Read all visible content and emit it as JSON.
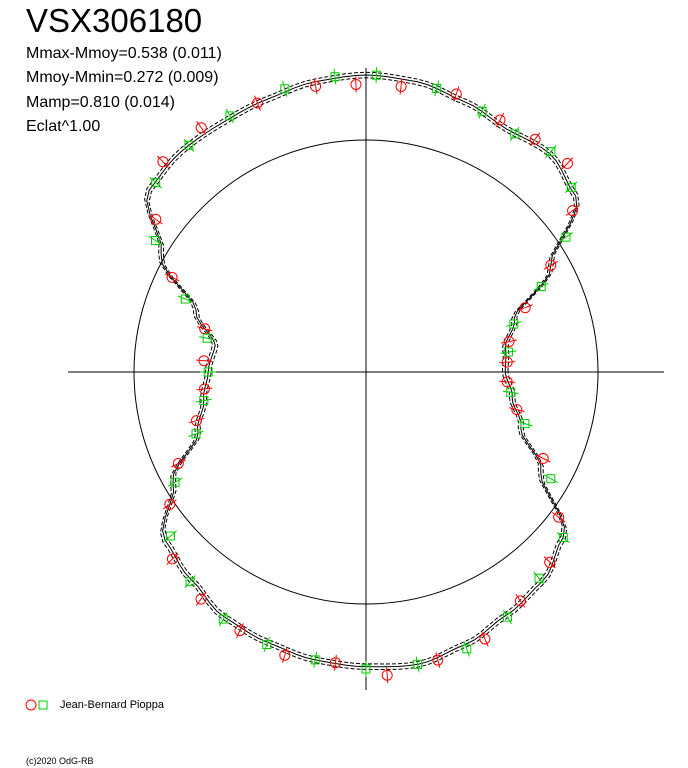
{
  "header": {
    "title": "VSX306180",
    "stats": [
      "Mmax-Mmoy=0.538 (0.011)",
      "Mmoy-Mmin=0.272 (0.009)",
      "Mamp=0.810 (0.014)",
      "Eclat^1.00"
    ]
  },
  "legend": {
    "observer": "Jean-Bernard Pioppa",
    "circle_color": "#ff0000",
    "square_color": "#00cc00"
  },
  "footer": {
    "copyright": "(c)2020 OdG-RB"
  },
  "chart_data": {
    "type": "polar",
    "title": "VSX306180",
    "statistics": {
      "mmax_minus_mmoy": 0.538,
      "mmax_minus_mmoy_err": 0.011,
      "mmoy_minus_mmin": 0.272,
      "mmoy_minus_mmin_err": 0.009,
      "mamp": 0.81,
      "mamp_err": 0.014,
      "eclat_exponent": 1.0
    },
    "reference_circle_radius": 1.0,
    "model_curve_radius_by_angle_deg": [
      [
        0,
        0.6
      ],
      [
        10,
        0.61
      ],
      [
        20,
        0.68
      ],
      [
        30,
        0.92
      ],
      [
        40,
        1.18
      ],
      [
        50,
        1.23
      ],
      [
        60,
        1.21
      ],
      [
        70,
        1.24
      ],
      [
        80,
        1.27
      ],
      [
        90,
        1.28
      ],
      [
        100,
        1.27
      ],
      [
        110,
        1.25
      ],
      [
        120,
        1.24
      ],
      [
        130,
        1.24
      ],
      [
        140,
        1.22
      ],
      [
        150,
        1.02
      ],
      [
        160,
        0.78
      ],
      [
        170,
        0.66
      ],
      [
        180,
        0.68
      ],
      [
        190,
        0.71
      ],
      [
        200,
        0.77
      ],
      [
        210,
        0.96
      ],
      [
        220,
        1.13
      ],
      [
        230,
        1.17
      ],
      [
        240,
        1.22
      ],
      [
        250,
        1.24
      ],
      [
        260,
        1.26
      ],
      [
        270,
        1.27
      ],
      [
        280,
        1.28
      ],
      [
        290,
        1.25
      ],
      [
        300,
        1.21
      ],
      [
        310,
        1.18
      ],
      [
        320,
        1.11
      ],
      [
        330,
        0.87
      ],
      [
        340,
        0.71
      ],
      [
        350,
        0.64
      ],
      [
        360,
        0.6
      ]
    ],
    "series": [
      {
        "name": "Jean-Bernard Pioppa",
        "marker": "circle",
        "color": "#ff0000",
        "points": [
          [
            4,
            0.61
          ],
          [
            12,
            0.63
          ],
          [
            22,
            0.74
          ],
          [
            30,
            0.92
          ],
          [
            38,
            1.13
          ],
          [
            46,
            1.25
          ],
          [
            54,
            1.24
          ],
          [
            62,
            1.23
          ],
          [
            72,
            1.26
          ],
          [
            83,
            1.24
          ],
          [
            92,
            1.24
          ],
          [
            100,
            1.25
          ],
          [
            112,
            1.25
          ],
          [
            124,
            1.27
          ],
          [
            134,
            1.26
          ],
          [
            144,
            1.12
          ],
          [
            154,
            0.93
          ],
          [
            165,
            0.72
          ],
          [
            176,
            0.7
          ],
          [
            186,
            0.7
          ],
          [
            196,
            0.76
          ],
          [
            206,
            0.9
          ],
          [
            214,
            1.02
          ],
          [
            224,
            1.16
          ],
          [
            234,
            1.21
          ],
          [
            244,
            1.24
          ],
          [
            254,
            1.27
          ],
          [
            264,
            1.26
          ],
          [
            274,
            1.31
          ],
          [
            284,
            1.28
          ],
          [
            294,
            1.26
          ],
          [
            304,
            1.19
          ],
          [
            314,
            1.14
          ],
          [
            323,
            1.04
          ],
          [
            334,
            0.85
          ],
          [
            346,
            0.67
          ],
          [
            356,
            0.61
          ]
        ]
      },
      {
        "name": "Jean-Bernard Pioppa",
        "marker": "square",
        "color": "#00cc00",
        "points": [
          [
            8,
            0.62
          ],
          [
            18,
            0.67
          ],
          [
            26,
            0.84
          ],
          [
            34,
            1.04
          ],
          [
            42,
            1.19
          ],
          [
            50,
            1.24
          ],
          [
            58,
            1.21
          ],
          [
            66,
            1.23
          ],
          [
            76,
            1.26
          ],
          [
            88,
            1.28
          ],
          [
            96,
            1.28
          ],
          [
            106,
            1.27
          ],
          [
            118,
            1.25
          ],
          [
            128,
            1.24
          ],
          [
            138,
            1.22
          ],
          [
            148,
            1.07
          ],
          [
            158,
            0.84
          ],
          [
            168,
            0.7
          ],
          [
            180,
            0.68
          ],
          [
            190,
            0.71
          ],
          [
            200,
            0.78
          ],
          [
            210,
            0.95
          ],
          [
            220,
            1.1
          ],
          [
            230,
            1.18
          ],
          [
            240,
            1.23
          ],
          [
            250,
            1.25
          ],
          [
            260,
            1.26
          ],
          [
            270,
            1.28
          ],
          [
            280,
            1.28
          ],
          [
            290,
            1.27
          ],
          [
            300,
            1.22
          ],
          [
            310,
            1.16
          ],
          [
            320,
            1.11
          ],
          [
            330,
            0.92
          ],
          [
            342,
            0.72
          ],
          [
            352,
            0.63
          ]
        ]
      }
    ]
  }
}
